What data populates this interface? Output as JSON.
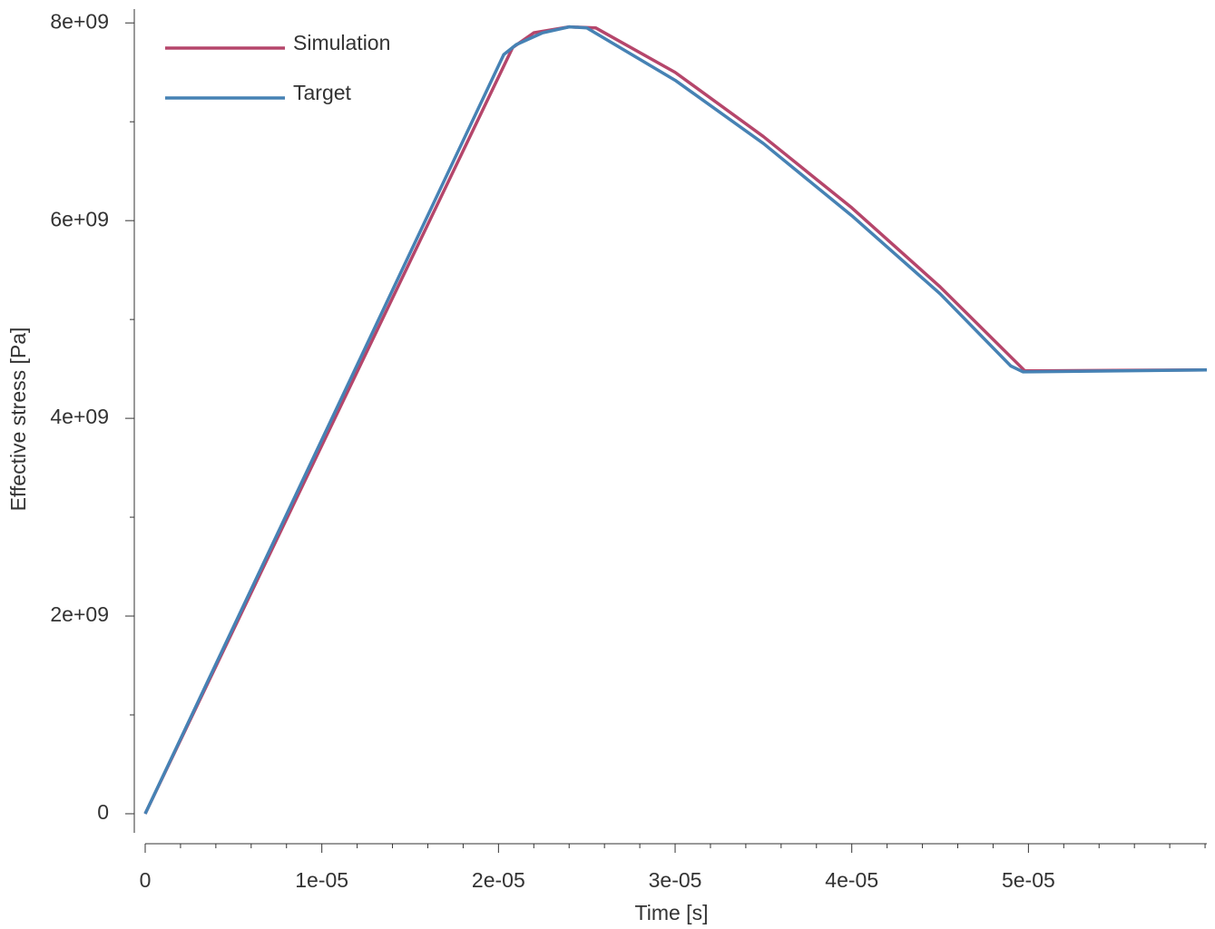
{
  "chart_data": {
    "type": "line",
    "xlabel": "Time [s]",
    "ylabel": "Effective stress [Pa]",
    "xlim": [
      0,
      6.01e-05
    ],
    "ylim": [
      -193000000,
      8140000000
    ],
    "xticks": [
      0,
      {
        "value": 1e-05,
        "label": "1e-05"
      },
      {
        "value": 2e-05,
        "label": "2e-05"
      },
      {
        "value": 3e-05,
        "label": "3e-05"
      },
      {
        "value": 4e-05,
        "label": "4e-05"
      },
      {
        "value": 5e-05,
        "label": "5e-05"
      }
    ],
    "yticks": [
      0,
      {
        "value": 2000000000,
        "label": "2e+09"
      },
      {
        "value": 4000000000,
        "label": "4e+09"
      },
      {
        "value": 6000000000,
        "label": "6e+09"
      },
      {
        "value": 8000000000,
        "label": "8e+09"
      }
    ],
    "xminorticks": [
      2e-06,
      4e-06,
      6e-06,
      8e-06,
      1.2e-05,
      1.4e-05,
      1.6e-05,
      1.8e-05,
      2.2e-05,
      2.4e-05,
      2.6e-05,
      2.8e-05,
      3.2e-05,
      3.4e-05,
      3.6e-05,
      3.8e-05,
      4.2e-05,
      4.4e-05,
      4.6e-05,
      4.8e-05,
      5.2e-05,
      5.4e-05,
      5.6e-05,
      5.8e-05,
      6e-05
    ],
    "yminorticks": [
      1000000000,
      3000000000,
      5000000000,
      7000000000
    ],
    "legend": "upper left",
    "series": [
      {
        "name": "Simulation",
        "color": "#b5466b",
        "x": [
          0,
          2.08e-05,
          2.2e-05,
          2.4e-05,
          2.55e-05,
          3e-05,
          3.5e-05,
          4e-05,
          4.5e-05,
          4.98e-05,
          6.01e-05
        ],
        "values": [
          0,
          7750000000,
          7900000000,
          7960000000,
          7950000000,
          7500000000,
          6850000000,
          6130000000,
          5330000000,
          4480000000,
          4490000000
        ]
      },
      {
        "name": "Target",
        "color": "#4682b4",
        "x": [
          0,
          2.03e-05,
          2.1e-05,
          2.25e-05,
          2.4e-05,
          2.5e-05,
          3e-05,
          3.5e-05,
          4e-05,
          4.5e-05,
          4.9e-05,
          4.97e-05,
          6.01e-05
        ],
        "values": [
          0,
          7680000000,
          7780000000,
          7900000000,
          7960000000,
          7950000000,
          7420000000,
          6780000000,
          6050000000,
          5260000000,
          4530000000,
          4470000000,
          4490000000
        ]
      }
    ]
  }
}
